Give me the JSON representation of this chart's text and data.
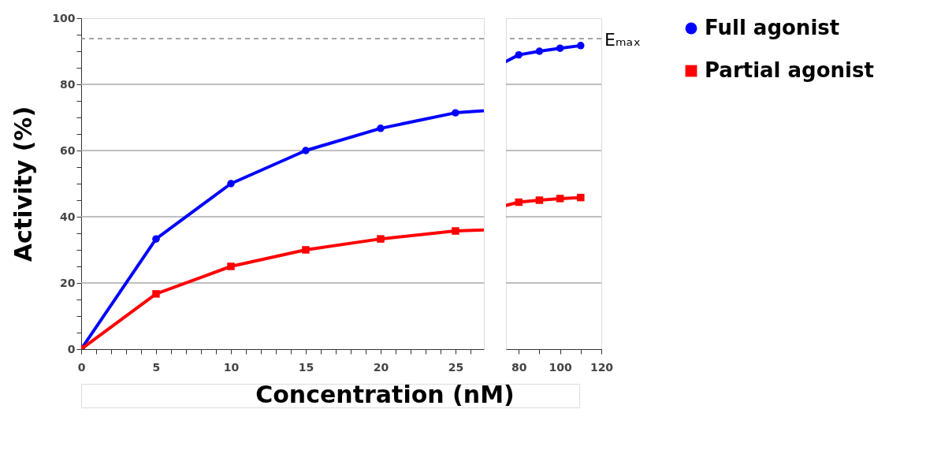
{
  "chart_data": [
    {
      "type": "line",
      "ylabel": "Activity (%)",
      "xlabel": "Concentration (nM)",
      "x": [
        0,
        5,
        10,
        15,
        20,
        25
      ],
      "series": [
        {
          "name": "Full agonist",
          "color": "#0000ff",
          "marker": "circle",
          "values": [
            0,
            33.3,
            50,
            60,
            66.7,
            71.4
          ]
        },
        {
          "name": "Partial agonist",
          "color": "#ff0000",
          "marker": "square",
          "values": [
            0,
            16.7,
            25,
            30,
            33.3,
            35.7
          ]
        }
      ],
      "xlim": [
        0,
        26.9
      ],
      "ylim": [
        0,
        100
      ],
      "xticks": [
        0,
        {
          "value": 1,
          "label": null
        },
        {
          "value": 2,
          "label": null
        },
        {
          "value": 3,
          "label": null
        },
        {
          "value": 4,
          "label": null
        },
        5,
        {
          "value": 6,
          "label": null
        },
        {
          "value": 7,
          "label": null
        },
        {
          "value": 8,
          "label": null
        },
        {
          "value": 9,
          "label": null
        },
        10,
        {
          "value": 11,
          "label": null
        },
        {
          "value": 12,
          "label": null
        },
        {
          "value": 13,
          "label": null
        },
        {
          "value": 14,
          "label": null
        },
        15,
        {
          "value": 16,
          "label": null
        },
        {
          "value": 17,
          "label": null
        },
        {
          "value": 18,
          "label": null
        },
        {
          "value": 19,
          "label": null
        },
        20,
        {
          "value": 21,
          "label": null
        },
        {
          "value": 22,
          "label": null
        },
        {
          "value": 23,
          "label": null
        },
        {
          "value": 24,
          "label": null
        },
        25,
        {
          "value": 26,
          "label": null
        }
      ],
      "yticks": [
        0,
        {
          "value": 5,
          "label": null
        },
        {
          "value": 10,
          "label": null
        },
        {
          "value": 15,
          "label": null
        },
        20,
        {
          "value": 25,
          "label": null
        },
        {
          "value": 30,
          "label": null
        },
        {
          "value": 35,
          "label": null
        },
        40,
        {
          "value": 45,
          "label": null
        },
        {
          "value": 50,
          "label": null
        },
        {
          "value": 55,
          "label": null
        },
        60,
        {
          "value": 65,
          "label": null
        },
        {
          "value": 70,
          "label": null
        },
        {
          "value": 75,
          "label": null
        },
        80,
        {
          "value": 85,
          "label": null
        },
        {
          "value": 90,
          "label": null
        },
        {
          "value": 95,
          "label": null
        },
        100
      ],
      "ref_lines": [
        {
          "axis": "y",
          "value": 93.8,
          "color": "#888888",
          "line_style": "dashed"
        }
      ],
      "grid": "y",
      "legend": "right"
    },
    {
      "type": "line",
      "x": [
        80,
        90,
        100,
        110
      ],
      "series": [
        {
          "name": "Full agonist",
          "color": "#0000ff",
          "marker": "circle",
          "values": [
            88.9,
            90,
            90.9,
            91.7
          ]
        },
        {
          "name": "Partial agonist",
          "color": "#ff0000",
          "marker": "square",
          "values": [
            44.4,
            45,
            45.5,
            45.8
          ]
        }
      ],
      "xlim": [
        73.8,
        120
      ],
      "ylim": [
        0,
        100
      ],
      "xticks": [
        80,
        {
          "value": 90,
          "label": null
        },
        100,
        {
          "value": 110,
          "label": null
        },
        120
      ],
      "yticks": [
        0,
        20,
        40,
        60,
        80,
        100
      ],
      "ref_lines": [
        {
          "axis": "y",
          "value": 93.8,
          "label": "Eₘₐₓ",
          "color": "#888888",
          "line_style": "dashed"
        }
      ],
      "grid": "y",
      "tick_labels": "x",
      "legend": "right"
    }
  ]
}
